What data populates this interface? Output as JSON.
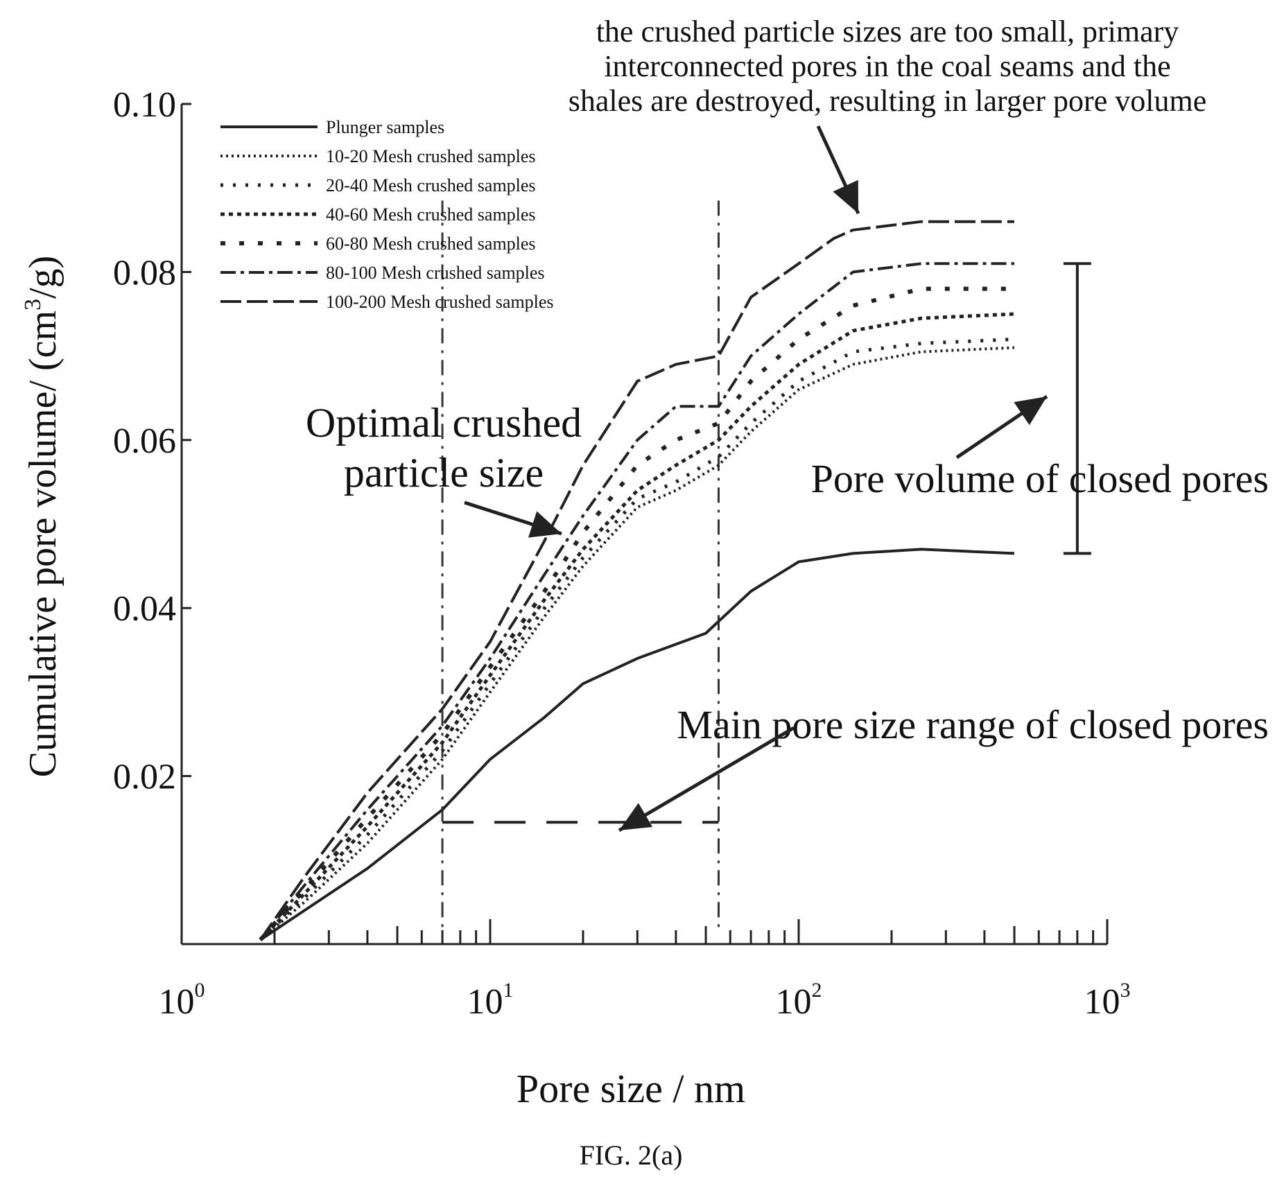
{
  "figure_caption": "FIG. 2(a)",
  "chart_data": {
    "type": "line",
    "xlabel": "Pore size / nm",
    "ylabel": "Cumulative pore volume/ (cm³/g)",
    "ylabel_parts": {
      "main": "Cumulative pore volume/ (cm",
      "sup": "3",
      "tail": "/g)"
    },
    "x_scale": "log",
    "xlim": [
      1,
      1000
    ],
    "ylim": [
      0,
      0.1
    ],
    "x_ticks": [
      {
        "value": 1,
        "base": "10",
        "exp": "0"
      },
      {
        "value": 10,
        "base": "10",
        "exp": "1"
      },
      {
        "value": 100,
        "base": "10",
        "exp": "2"
      },
      {
        "value": 1000,
        "base": "10",
        "exp": "3"
      }
    ],
    "y_ticks": [
      {
        "value": 0.02,
        "label": "0.02"
      },
      {
        "value": 0.04,
        "label": "0.04"
      },
      {
        "value": 0.06,
        "label": "0.06"
      },
      {
        "value": 0.08,
        "label": "0.08"
      },
      {
        "value": 0.1,
        "label": "0.10"
      }
    ],
    "legend_position": "top-left",
    "series": [
      {
        "name": "Plunger samples",
        "style": "solid",
        "x": [
          1.8,
          2.5,
          4,
          7,
          10,
          15,
          20,
          30,
          50,
          70,
          100,
          150,
          250,
          500
        ],
        "y": [
          0.0005,
          0.004,
          0.009,
          0.016,
          0.022,
          0.027,
          0.031,
          0.034,
          0.037,
          0.042,
          0.0455,
          0.0465,
          0.047,
          0.0465
        ]
      },
      {
        "name": "10-20 Mesh crushed samples",
        "style": "dotted",
        "x": [
          1.8,
          2.5,
          4,
          7,
          10,
          15,
          20,
          30,
          40,
          55,
          70,
          100,
          150,
          250,
          500
        ],
        "y": [
          0.0005,
          0.005,
          0.012,
          0.022,
          0.03,
          0.039,
          0.045,
          0.052,
          0.054,
          0.057,
          0.061,
          0.066,
          0.069,
          0.0705,
          0.071
        ]
      },
      {
        "name": "20-40 Mesh crushed samples",
        "style": "sparse-dots",
        "x": [
          1.8,
          2.5,
          4,
          7,
          10,
          15,
          20,
          30,
          40,
          55,
          70,
          100,
          150,
          250,
          500
        ],
        "y": [
          0.0005,
          0.0055,
          0.013,
          0.023,
          0.031,
          0.04,
          0.046,
          0.053,
          0.055,
          0.058,
          0.062,
          0.067,
          0.0705,
          0.0715,
          0.072
        ]
      },
      {
        "name": "40-60 Mesh crushed samples",
        "style": "dense-dots",
        "x": [
          1.8,
          2.5,
          4,
          7,
          10,
          15,
          20,
          30,
          40,
          55,
          70,
          100,
          150,
          250,
          500
        ],
        "y": [
          0.0005,
          0.006,
          0.014,
          0.024,
          0.032,
          0.041,
          0.047,
          0.054,
          0.057,
          0.06,
          0.064,
          0.069,
          0.073,
          0.0745,
          0.075
        ]
      },
      {
        "name": "60-80 Mesh crushed samples",
        "style": "wide-dots",
        "x": [
          1.8,
          2.5,
          4,
          7,
          10,
          15,
          20,
          30,
          40,
          55,
          70,
          100,
          150,
          250,
          500
        ],
        "y": [
          0.0005,
          0.0065,
          0.015,
          0.025,
          0.033,
          0.042,
          0.049,
          0.057,
          0.06,
          0.062,
          0.067,
          0.072,
          0.076,
          0.078,
          0.078
        ]
      },
      {
        "name": "80-100 Mesh crushed samples",
        "style": "dash-dot",
        "x": [
          1.8,
          2.5,
          4,
          7,
          10,
          15,
          20,
          30,
          40,
          55,
          70,
          100,
          150,
          250,
          500
        ],
        "y": [
          0.0005,
          0.007,
          0.016,
          0.026,
          0.034,
          0.044,
          0.051,
          0.06,
          0.064,
          0.064,
          0.07,
          0.075,
          0.08,
          0.081,
          0.081
        ]
      },
      {
        "name": "100-200 Mesh crushed samples",
        "style": "long-dash",
        "x": [
          1.8,
          2.5,
          4,
          7,
          10,
          15,
          20,
          30,
          40,
          55,
          70,
          100,
          130,
          150,
          250,
          500
        ],
        "y": [
          0.0005,
          0.008,
          0.018,
          0.028,
          0.036,
          0.048,
          0.057,
          0.067,
          0.069,
          0.07,
          0.077,
          0.081,
          0.084,
          0.085,
          0.086,
          0.086
        ]
      }
    ],
    "annotations": {
      "top": [
        "the crushed particle sizes are too small, primary",
        "interconnected pores in the coal seams and the",
        "shales are destroyed, resulting in larger pore volume"
      ],
      "optimal": [
        "Optimal crushed",
        "particle size"
      ],
      "closed_volume": "Pore volume of closed pores",
      "closed_range": "Main pore size range of closed pores"
    },
    "reference_lines": {
      "vertical_x": [
        7,
        55
      ],
      "range_y": 0.0145,
      "bracket_y": [
        0.0465,
        0.081
      ],
      "bracket_x": 800
    }
  }
}
